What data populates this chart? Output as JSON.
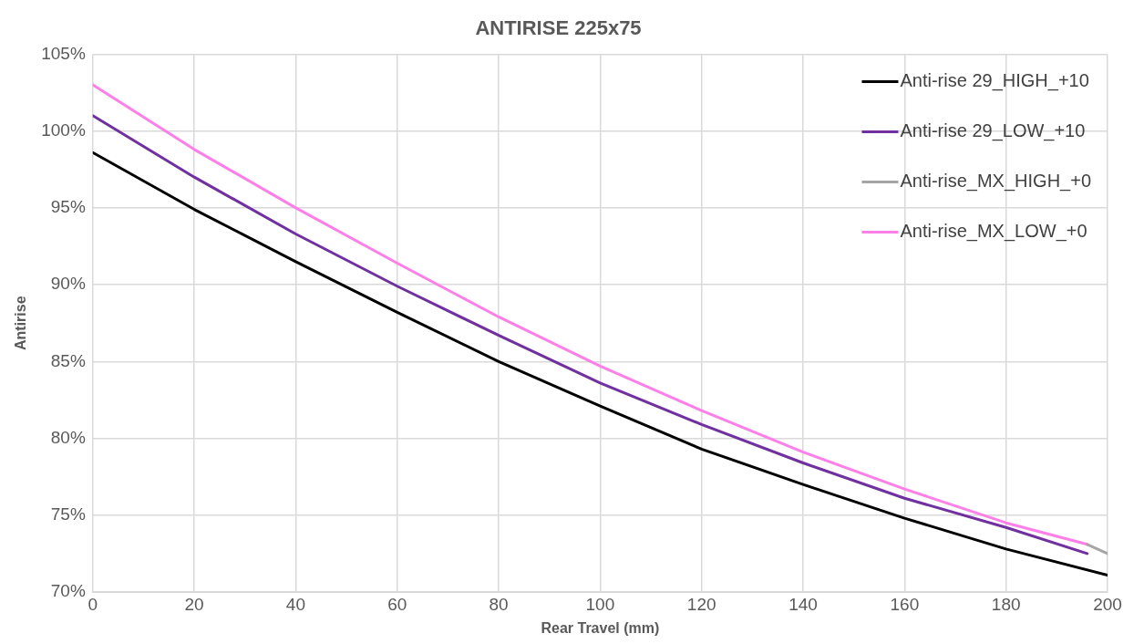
{
  "chart_data": {
    "type": "line",
    "title": "ANTIRISE 225x75",
    "xlabel": "Rear Travel (mm)",
    "ylabel": "Antirise",
    "xlim": [
      0,
      200
    ],
    "xticks": [
      0,
      20,
      40,
      60,
      80,
      100,
      120,
      140,
      160,
      180,
      200
    ],
    "ylim": [
      70,
      105
    ],
    "yticks": [
      {
        "value": 70,
        "label": "70%"
      },
      {
        "value": 75,
        "label": "75%"
      },
      {
        "value": 80,
        "label": "80%"
      },
      {
        "value": 85,
        "label": "85%"
      },
      {
        "value": 90,
        "label": "90%"
      },
      {
        "value": 95,
        "label": "95%"
      },
      {
        "value": 100,
        "label": "100%"
      },
      {
        "value": 105,
        "label": "105%"
      }
    ],
    "grid": true,
    "legend": "top right",
    "marker": "none",
    "line_style": "solid",
    "series": [
      {
        "name": "Anti-rise 29_HIGH_+10",
        "color": "#000000",
        "x": [
          0,
          20,
          40,
          60,
          80,
          100,
          120,
          140,
          160,
          180,
          200
        ],
        "values": [
          98.6,
          94.9,
          91.5,
          88.2,
          85.0,
          82.1,
          79.3,
          77.0,
          74.8,
          72.8,
          71.1
        ]
      },
      {
        "name": "Anti-rise 29_LOW_+10",
        "color": "#7030a0",
        "x": [
          0,
          20,
          40,
          60,
          80,
          100,
          120,
          140,
          160,
          180,
          196
        ],
        "values": [
          101.0,
          97.0,
          93.3,
          89.9,
          86.7,
          83.6,
          80.9,
          78.4,
          76.1,
          74.2,
          72.5
        ]
      },
      {
        "name": "Anti-rise_MX_HIGH_+0",
        "color": "#a5a5a5",
        "x": [
          196,
          200
        ],
        "values": [
          73.1,
          72.5
        ]
      },
      {
        "name": "Anti-rise_MX_LOW_+0",
        "color": "#ff7fe8",
        "x": [
          0,
          20,
          40,
          60,
          80,
          100,
          120,
          140,
          160,
          180,
          196
        ],
        "values": [
          103.0,
          98.8,
          95.0,
          91.4,
          87.9,
          84.7,
          81.8,
          79.1,
          76.7,
          74.5,
          73.1
        ]
      }
    ]
  }
}
